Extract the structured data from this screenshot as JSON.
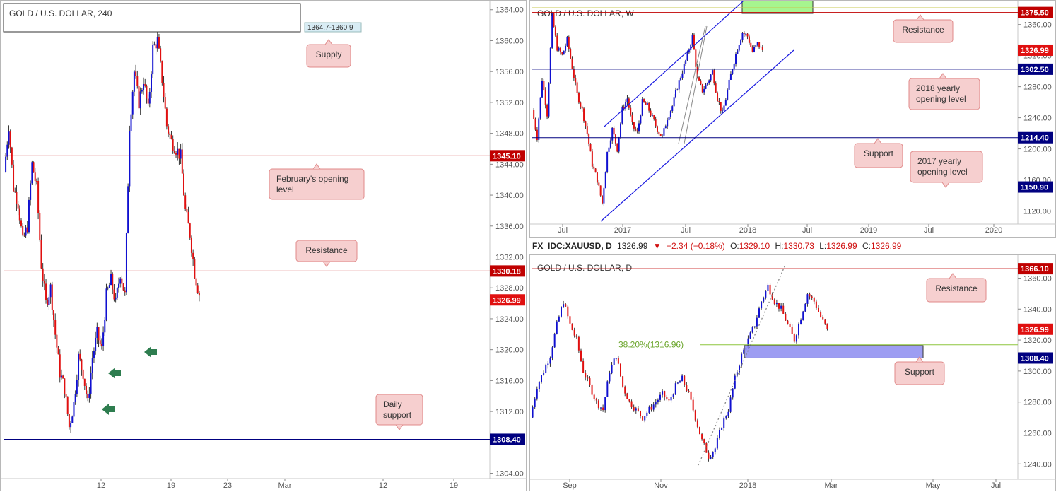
{
  "colors": {
    "bull": "#1010d0",
    "bear": "#e01010",
    "resistance_line": "#c00000",
    "support_line": "#000080",
    "callout_bg": "#f6cfcf",
    "callout_border": "#e08a8a",
    "fib_line": "#8dc63f",
    "zone": "#8c8cf0",
    "supply_zone": "#a6f58f"
  },
  "info_bar": {
    "symbol": "FX_IDC:XAUUSD, D",
    "price": "1326.99",
    "change": "−2.34 (−0.18%)",
    "o_label": "O:",
    "o": "1329.10",
    "h_label": "H:",
    "h": "1330.73",
    "l_label": "L:",
    "l": "1326.99",
    "c_label": "C:",
    "c": "1326.99"
  },
  "chart_data": [
    {
      "name": "left",
      "type": "candlestick",
      "title": "GOLD / U.S. DOLLAR, 240",
      "ylim": [
        1303.5,
        1364.8
      ],
      "ticks": [
        "1364.00",
        "1360.00",
        "1356.00",
        "1352.00",
        "1348.00",
        "1344.00",
        "1340.00",
        "1336.00",
        "1332.00",
        "1328.00",
        "1324.00",
        "1320.00",
        "1316.00",
        "1312.00",
        "1308.00",
        "1304.00"
      ],
      "xticks": [
        "12",
        "19",
        "23",
        "Mar",
        "12",
        "19"
      ],
      "levels": [
        {
          "value": 1345.1,
          "label": "1345.10",
          "kind": "resistance"
        },
        {
          "value": 1330.18,
          "label": "1330.18",
          "kind": "resistance"
        },
        {
          "value": 1308.4,
          "label": "1308.40",
          "kind": "support"
        }
      ],
      "last_price": "1326.99",
      "zone_label": "1364.7-1360.9",
      "callouts": [
        "Supply",
        "February's opening level",
        "Resistance",
        "Daily support"
      ],
      "arrows": 3,
      "path": [
        1343,
        1349,
        1341,
        1339,
        1334,
        1336,
        1344,
        1341,
        1331,
        1326,
        1328,
        1322,
        1317,
        1315,
        1310,
        1313,
        1319,
        1317,
        1313,
        1319,
        1322,
        1320,
        1327,
        1329,
        1326,
        1330,
        1327,
        1349,
        1356,
        1352,
        1355,
        1351,
        1359,
        1360,
        1355,
        1349,
        1347,
        1346,
        1345,
        1338,
        1335,
        1330,
        1327
      ]
    },
    {
      "name": "weekly",
      "type": "candlestick",
      "title": "GOLD / U.S. DOLLAR, W",
      "ylim": [
        1105,
        1387
      ],
      "ticks": [
        "1360.00",
        "1320.00",
        "1280.00",
        "1240.00",
        "1200.00",
        "1160.00",
        "1120.00"
      ],
      "xticks": [
        "Jul",
        "2017",
        "Jul",
        "2018",
        "Jul",
        "2019",
        "Jul",
        "2020"
      ],
      "levels": [
        {
          "value": 1375.5,
          "label": "1375.50",
          "kind": "resistance"
        },
        {
          "value": 1326.99,
          "label": "1326.99",
          "kind": "last"
        },
        {
          "value": 1302.5,
          "label": "1302.50",
          "kind": "support"
        },
        {
          "value": 1214.4,
          "label": "1214.40",
          "kind": "support"
        },
        {
          "value": 1150.9,
          "label": "1150.90",
          "kind": "support"
        }
      ],
      "callouts": [
        "Resistance",
        "2018 yearly opening level",
        "Support",
        "2017 yearly opening level"
      ],
      "path": [
        1250,
        1215,
        1290,
        1245,
        1370,
        1330,
        1320,
        1340,
        1305,
        1270,
        1250,
        1220,
        1180,
        1160,
        1130,
        1195,
        1225,
        1200,
        1250,
        1265,
        1230,
        1220,
        1260,
        1255,
        1240,
        1225,
        1215,
        1240,
        1255,
        1280,
        1300,
        1320,
        1345,
        1290,
        1275,
        1285,
        1300,
        1265,
        1245,
        1275,
        1305,
        1330,
        1350,
        1345,
        1325,
        1335,
        1327
      ]
    },
    {
      "name": "daily",
      "type": "candlestick",
      "title": "GOLD / U.S. DOLLAR, D",
      "ylim": [
        1231,
        1373
      ],
      "ticks": [
        "1360.00",
        "1340.00",
        "1320.00",
        "1300.00",
        "1280.00",
        "1260.00",
        "1240.00"
      ],
      "xticks": [
        "Sep",
        "Nov",
        "2018",
        "Mar",
        "May",
        "Jul"
      ],
      "levels": [
        {
          "value": 1366.1,
          "label": "1366.10",
          "kind": "resistance"
        },
        {
          "value": 1326.99,
          "label": "1326.99",
          "kind": "last"
        },
        {
          "value": 1308.4,
          "label": "1308.40",
          "kind": "support"
        }
      ],
      "fib_label": "38.20%(1316.96)",
      "fib_value": 1316.96,
      "zone": [
        1308.4,
        1315.5
      ],
      "callouts": [
        "Resistance",
        "Support"
      ],
      "path": [
        1270,
        1290,
        1300,
        1310,
        1330,
        1345,
        1330,
        1320,
        1300,
        1290,
        1280,
        1275,
        1300,
        1310,
        1290,
        1280,
        1275,
        1270,
        1275,
        1280,
        1285,
        1280,
        1290,
        1295,
        1285,
        1270,
        1255,
        1245,
        1250,
        1265,
        1275,
        1295,
        1310,
        1320,
        1330,
        1345,
        1355,
        1345,
        1340,
        1330,
        1320,
        1335,
        1350,
        1345,
        1335,
        1327
      ]
    }
  ]
}
